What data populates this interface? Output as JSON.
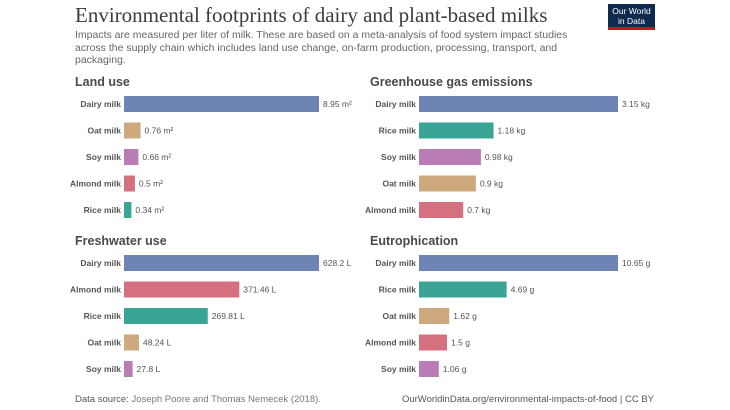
{
  "header": {
    "title": "Environmental footprints of dairy and plant-based milks",
    "subtitle": "Impacts are measured per liter of milk. These are based on a meta-analysis of food system impact studies across the supply chain which includes land use change, on-farm production, processing, transport, and packaging.",
    "logo_line1": "Our World",
    "logo_line2": "in Data"
  },
  "colors": {
    "dairy": "#6d84b4",
    "oat": "#cfa97e",
    "soy": "#b97cb4",
    "almond": "#d4707f",
    "rice": "#3aa597"
  },
  "chart_data": [
    {
      "type": "bar",
      "orientation": "horizontal",
      "title": "Land use",
      "categories": [
        "Dairy milk",
        "Oat milk",
        "Soy milk",
        "Almond milk",
        "Rice milk"
      ],
      "values": [
        8.95,
        0.76,
        0.66,
        0.5,
        0.34
      ],
      "labels": [
        "8.95 m²",
        "0.76 m²",
        "0.66 m²",
        "0.5 m²",
        "0.34 m²"
      ],
      "unit": "m²"
    },
    {
      "type": "bar",
      "orientation": "horizontal",
      "title": "Greenhouse gas emissions",
      "categories": [
        "Dairy milk",
        "Rice milk",
        "Soy milk",
        "Oat milk",
        "Almond milk"
      ],
      "values": [
        3.15,
        1.18,
        0.98,
        0.9,
        0.7
      ],
      "labels": [
        "3.15 kg",
        "1.18 kg",
        "0.98 kg",
        "0.9 kg",
        "0.7 kg"
      ],
      "unit": "kg"
    },
    {
      "type": "bar",
      "orientation": "horizontal",
      "title": "Freshwater use",
      "categories": [
        "Dairy milk",
        "Almond milk",
        "Rice milk",
        "Oat milk",
        "Soy milk"
      ],
      "values": [
        628.2,
        371.46,
        269.81,
        48.24,
        27.8
      ],
      "labels": [
        "628.2 L",
        "371.46 L",
        "269.81 L",
        "48.24 L",
        "27.8 L"
      ],
      "unit": "L"
    },
    {
      "type": "bar",
      "orientation": "horizontal",
      "title": "Eutrophication",
      "categories": [
        "Dairy milk",
        "Rice milk",
        "Oat milk",
        "Almond milk",
        "Soy milk"
      ],
      "values": [
        10.65,
        4.69,
        1.62,
        1.5,
        1.06
      ],
      "labels": [
        "10.65 g",
        "4.69 g",
        "1.62 g",
        "1.5 g",
        "1.06 g"
      ],
      "unit": "g"
    }
  ],
  "footer": {
    "source_label": "Data source:",
    "source_text": "Joseph Poore and Thomas Nemecek (2018).",
    "credit": "OurWorldinData.org/environmental-impacts-of-food | CC BY"
  }
}
